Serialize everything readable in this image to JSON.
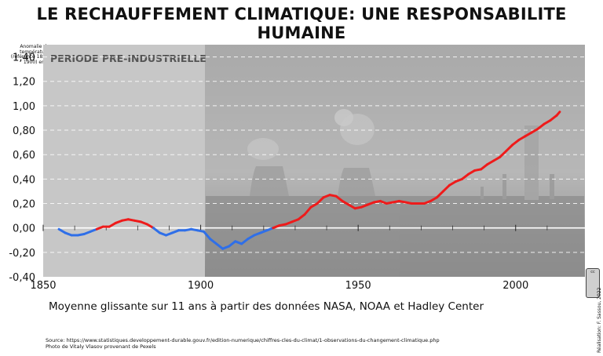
{
  "title": "LE RECHAUFFEMENT CLIMATIQUE: UNE RESPONSABILITE HUMAINE",
  "preindustrial_label": "PERIODE PRE-INDUSTRIELLE",
  "ylabel": "Anomalie des températures (référence 1850 - 1900) en °C",
  "caption": "Moyenne glissante sur 11 ans à partir des données NASA, NOAA et Hadley Center",
  "source_line1": "Source: https://www.statistiques.developpement-durable.gouv.fr/edition-numerique/chiffres-cles-du-climat/1-observations-du-changement-climatique.php",
  "source_line2": "Photo de Vitaly Vlasov provenant de Pexels",
  "credit": "Réalisation: F. Sassou, 2022",
  "cc_label": "cc",
  "colors": {
    "negative": "#2f6fe8",
    "positive": "#ee1b1b",
    "preindustrial_bg": "#c7c7c7",
    "industrial_bg": "#8c8c8c"
  },
  "chart_data": {
    "type": "line",
    "title": "LE RECHAUFFEMENT CLIMATIQUE: UNE RESPONSABILITE HUMAINE",
    "ylabel": "Anomalie des températures (référence 1850 - 1900) en °C",
    "xlim": [
      1850,
      2022
    ],
    "ylim": [
      -0.4,
      1.5
    ],
    "xticks": [
      1850,
      1900,
      1950,
      2000
    ],
    "xtick_labels": [
      "1850",
      "1900",
      "1950",
      "2000"
    ],
    "yticks": [
      -0.4,
      -0.2,
      0.0,
      0.2,
      0.4,
      0.6,
      0.8,
      1.0,
      1.2,
      1.4
    ],
    "ytick_labels": [
      "-0,40",
      "-0,20",
      "0,00",
      "0,20",
      "0,40",
      "0,60",
      "0,80",
      "1,00",
      "1,20",
      "1,40"
    ],
    "preindustrial_range": [
      1850,
      1902
    ],
    "grid": "horizontal dashed",
    "x": [
      1855,
      1857,
      1859,
      1861,
      1863,
      1865,
      1867,
      1869,
      1871,
      1873,
      1875,
      1877,
      1879,
      1881,
      1883,
      1885,
      1887,
      1889,
      1891,
      1893,
      1895,
      1897,
      1899,
      1901,
      1903,
      1905,
      1907,
      1909,
      1911,
      1913,
      1915,
      1917,
      1919,
      1921,
      1923,
      1925,
      1927,
      1929,
      1931,
      1933,
      1935,
      1937,
      1939,
      1941,
      1943,
      1945,
      1947,
      1949,
      1951,
      1953,
      1955,
      1957,
      1959,
      1961,
      1963,
      1965,
      1967,
      1969,
      1971,
      1973,
      1975,
      1977,
      1979,
      1981,
      1983,
      1985,
      1987,
      1989,
      1991,
      1993,
      1995,
      1997,
      1999,
      2001,
      2003,
      2005,
      2007,
      2009,
      2011,
      2013,
      2014
    ],
    "y": [
      -0.01,
      -0.04,
      -0.06,
      -0.06,
      -0.05,
      -0.03,
      -0.01,
      0.01,
      0.01,
      0.04,
      0.06,
      0.07,
      0.06,
      0.05,
      0.03,
      0.0,
      -0.04,
      -0.06,
      -0.04,
      -0.02,
      -0.02,
      -0.01,
      -0.02,
      -0.03,
      -0.09,
      -0.13,
      -0.17,
      -0.15,
      -0.11,
      -0.13,
      -0.09,
      -0.06,
      -0.04,
      -0.02,
      0.0,
      0.02,
      0.03,
      0.05,
      0.07,
      0.11,
      0.17,
      0.2,
      0.25,
      0.27,
      0.26,
      0.22,
      0.19,
      0.16,
      0.17,
      0.19,
      0.21,
      0.22,
      0.2,
      0.21,
      0.22,
      0.21,
      0.2,
      0.2,
      0.2,
      0.22,
      0.25,
      0.3,
      0.35,
      0.38,
      0.4,
      0.44,
      0.47,
      0.48,
      0.52,
      0.55,
      0.58,
      0.63,
      0.68,
      0.72,
      0.75,
      0.78,
      0.81,
      0.85,
      0.88,
      0.92,
      0.95
    ]
  }
}
